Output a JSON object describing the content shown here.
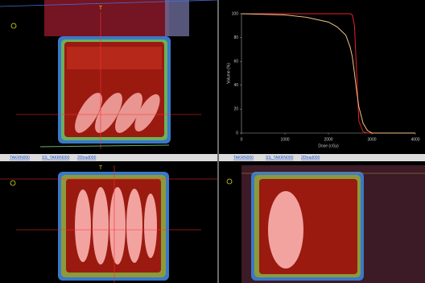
{
  "chart_data": {
    "type": "line",
    "x_label": "Dose (cGy)",
    "y_label": "Volume (%)",
    "x": [
      0,
      500,
      1000,
      1500,
      2000,
      2200,
      2400,
      2500,
      2550,
      2600,
      2650,
      2700,
      2800,
      2900,
      3000,
      4000
    ],
    "series": [
      {
        "color": "#e8202a",
        "values": [
          100,
          100,
          100,
          100,
          100,
          100,
          100,
          100,
          99,
          90,
          50,
          10,
          1,
          0,
          0,
          0
        ]
      },
      {
        "color": "#f2c48a",
        "values": [
          100,
          99.5,
          99,
          97,
          93,
          89,
          82,
          72,
          64,
          50,
          35,
          22,
          8,
          2,
          0,
          0
        ]
      }
    ],
    "xlim": [
      0,
      4000
    ],
    "ylim": [
      0,
      100
    ],
    "xticks": [
      0,
      1000,
      2000,
      3000,
      4000
    ],
    "yticks": [
      0,
      20,
      40,
      60,
      80,
      100
    ],
    "grid": false
  },
  "toolbars": [
    {
      "items": [
        "TAKRN000",
        "SS_TAKRN000",
        "2Dtrad000"
      ]
    },
    {
      "items": [
        "TAKRN000",
        "SS_TAKRN000",
        "2Dtrad000"
      ]
    }
  ],
  "view_labels": [
    "T",
    "T"
  ]
}
